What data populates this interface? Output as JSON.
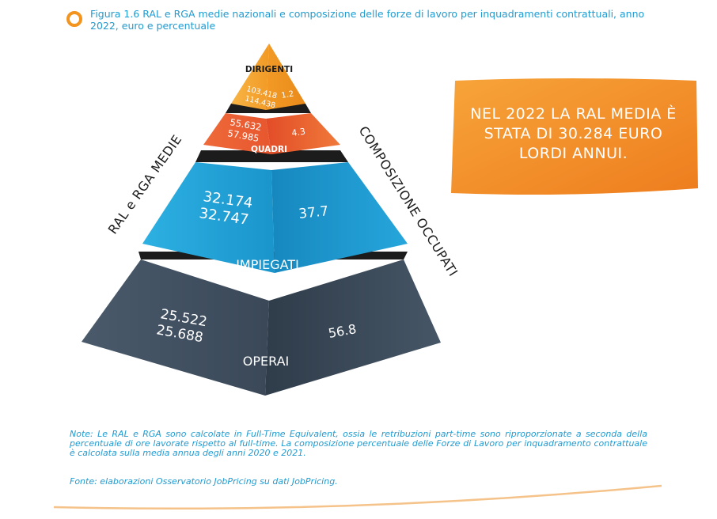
{
  "figure": {
    "caption": "Figura 1.6 RAL e RGA medie nazionali e composizione delle forze di lavoro per inquadramenti contrattuali, anno 2022, euro e percentuale"
  },
  "axes": {
    "left_label": "RAL e RGA MEDIE",
    "right_label": "COMPOSIZIONE OCCUPATI"
  },
  "levels": [
    {
      "name": "DIRIGENTI",
      "ral": "103.418",
      "rga": "114.438",
      "share": "1.2"
    },
    {
      "name": "QUADRI",
      "ral": "55.632",
      "rga": "57.985",
      "share": "4.3"
    },
    {
      "name": "IMPIEGATI",
      "ral": "32.174",
      "rga": "32.747",
      "share": "37.7"
    },
    {
      "name": "OPERAI",
      "ral": "25.522",
      "rga": "25.688",
      "share": "56.8"
    }
  ],
  "callout": {
    "line1": "NEL 2022 LA RAL MEDIA È",
    "line2": "STATA DI 30.284 EURO",
    "line3": "LORDI ANNUI."
  },
  "notes": {
    "text": "Note: Le RAL e RGA sono calcolate in Full-Time Equivalent, ossia le retribuzioni part-time sono riproporzionate a seconda della percentuale di ore lavorate rispetto al full-time. La composizione percentuale delle Forze di Lavoro per inquadramento contrattuale è calcolata sulla media annua degli anni 2020 e 2021.",
    "source": "Fonte: elaborazioni Osservatorio JobPricing su dati JobPricing."
  },
  "colors": {
    "accent": "#1f9bd1",
    "orange": "#f2941e",
    "dirigenti": "#f4a532",
    "quadri": "#e8562e",
    "impiegati": "#1ea0d6",
    "operai": "#3b4a5a",
    "gap": "#1c1c1c"
  }
}
